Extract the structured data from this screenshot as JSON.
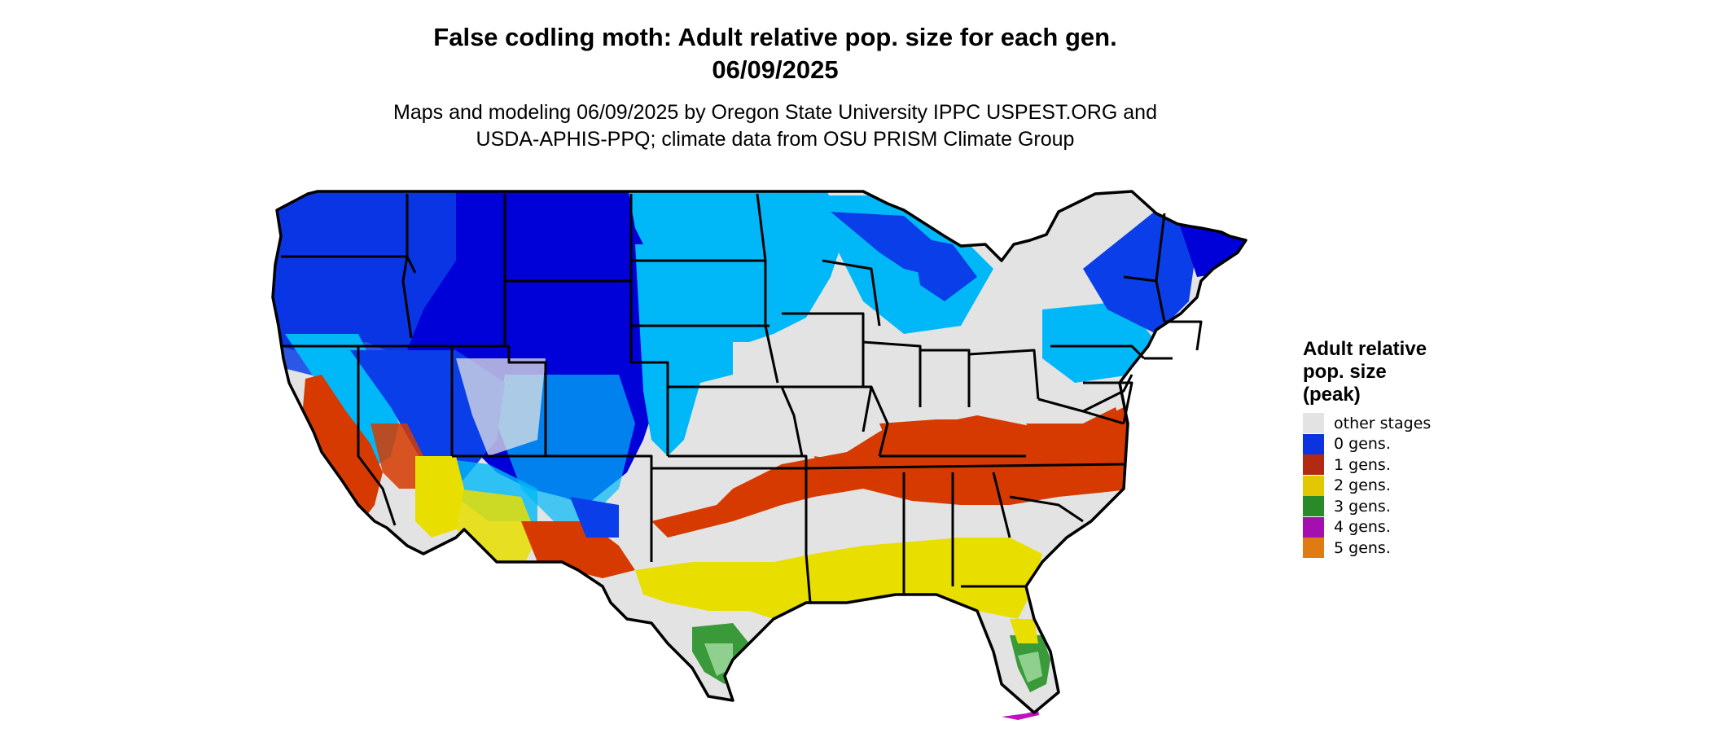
{
  "header": {
    "title_line1": "False codling moth: Adult relative pop. size for each gen.",
    "title_line2": "06/09/2025",
    "subtitle_line1": "Maps and modeling 06/09/2025 by Oregon State University IPPC USPEST.ORG and",
    "subtitle_line2": "USDA-APHIS-PPQ; climate data from OSU PRISM Climate Group"
  },
  "legend": {
    "title_line1": "Adult relative",
    "title_line2": "pop. size",
    "title_line3": "(peak)",
    "items": [
      {
        "label": "other stages",
        "color": "#e3e3e3"
      },
      {
        "label": "0 gens.",
        "color": "#0b33e0"
      },
      {
        "label": "1 gens.",
        "color": "#b22a12"
      },
      {
        "label": "2 gens.",
        "color": "#e2c800"
      },
      {
        "label": "3 gens.",
        "color": "#2a8a2a"
      },
      {
        "label": "4 gens.",
        "color": "#a50fb0"
      },
      {
        "label": "5 gens.",
        "color": "#e07a12"
      }
    ]
  },
  "map": {
    "colors": {
      "background": "#e3e3e3",
      "dark_blue": "#0000d8",
      "mid_blue": "#0a3ee8",
      "light_blue": "#00b8f8",
      "red": "#d63a00",
      "dark_red": "#b22a12",
      "yellow": "#e8de00",
      "green": "#3a9a3a",
      "light_green": "#8fd08f",
      "magenta": "#c010c0",
      "border": "#000000"
    }
  }
}
